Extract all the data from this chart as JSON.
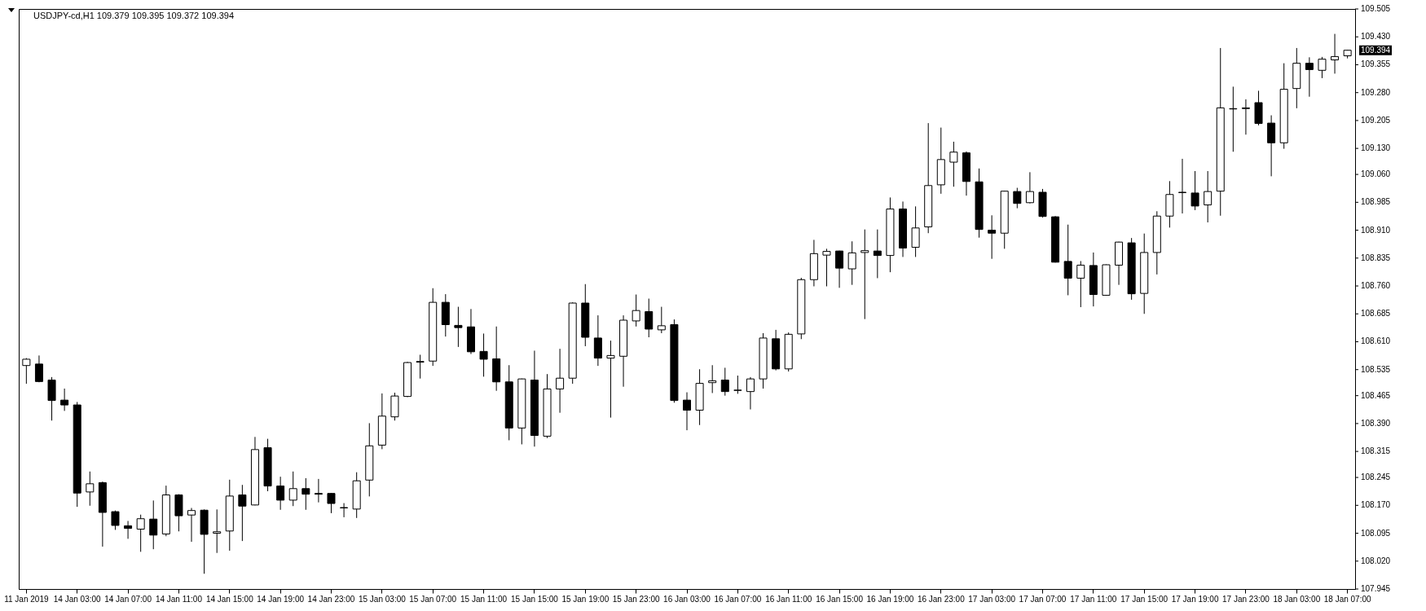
{
  "chart_data": {
    "type": "candlestick",
    "title": "USDJPY-cd,H1  109.379 109.395 109.372 109.394",
    "categories": [
      "11 Jan 2019",
      null,
      null,
      null,
      "14 Jan 03:00",
      null,
      null,
      null,
      "14 Jan 07:00",
      null,
      null,
      null,
      "14 Jan 11:00",
      null,
      null,
      null,
      "14 Jan 15:00",
      null,
      null,
      null,
      "14 Jan 19:00",
      null,
      null,
      null,
      "14 Jan 23:00",
      null,
      null,
      null,
      "15 Jan 03:00",
      null,
      null,
      null,
      "15 Jan 07:00",
      null,
      null,
      null,
      "15 Jan 11:00",
      null,
      null,
      null,
      "15 Jan 15:00",
      null,
      null,
      null,
      "15 Jan 19:00",
      null,
      null,
      null,
      "15 Jan 23:00",
      null,
      null,
      null,
      "16 Jan 03:00",
      null,
      null,
      null,
      "16 Jan 07:00",
      null,
      null,
      null,
      "16 Jan 11:00",
      null,
      null,
      null,
      "16 Jan 15:00",
      null,
      null,
      null,
      "16 Jan 19:00",
      null,
      null,
      null,
      "16 Jan 23:00",
      null,
      null,
      null,
      "17 Jan 03:00",
      null,
      null,
      null,
      "17 Jan 07:00",
      null,
      null,
      null,
      "17 Jan 11:00",
      null,
      null,
      null,
      "17 Jan 15:00",
      null,
      null,
      null,
      "17 Jan 19:00",
      null,
      null,
      null,
      "17 Jan 23:00",
      null,
      null,
      null,
      "18 Jan 03:00",
      null,
      null,
      null,
      "18 Jan 07:00"
    ],
    "ohlc": [
      [
        108.546,
        108.566,
        108.497,
        108.563
      ],
      [
        108.55,
        108.573,
        108.501,
        108.503
      ],
      [
        108.507,
        108.515,
        108.398,
        108.452
      ],
      [
        108.453,
        108.484,
        108.424,
        108.44
      ],
      [
        108.44,
        108.448,
        108.166,
        108.203
      ],
      [
        108.206,
        108.261,
        108.169,
        108.228
      ],
      [
        108.231,
        108.234,
        108.059,
        108.151
      ],
      [
        108.153,
        108.156,
        108.104,
        108.116
      ],
      [
        108.115,
        108.128,
        108.08,
        108.108
      ],
      [
        108.106,
        108.145,
        108.045,
        108.134
      ],
      [
        108.133,
        108.183,
        108.052,
        108.09
      ],
      [
        108.093,
        108.223,
        108.087,
        108.198
      ],
      [
        108.198,
        108.2,
        108.1,
        108.142
      ],
      [
        108.144,
        108.163,
        108.072,
        108.156
      ],
      [
        108.157,
        108.159,
        107.986,
        108.092
      ],
      [
        108.095,
        108.159,
        108.042,
        108.099
      ],
      [
        108.101,
        108.239,
        108.048,
        108.195
      ],
      [
        108.198,
        108.225,
        108.074,
        108.168
      ],
      [
        108.171,
        108.354,
        108.17,
        108.32
      ],
      [
        108.325,
        108.349,
        108.208,
        108.222
      ],
      [
        108.222,
        108.247,
        108.158,
        108.184
      ],
      [
        108.184,
        108.261,
        108.168,
        108.215
      ],
      [
        108.215,
        108.243,
        108.158,
        108.2
      ],
      [
        108.202,
        108.241,
        108.178,
        108.2
      ],
      [
        108.202,
        108.203,
        108.149,
        108.175
      ],
      [
        108.163,
        108.176,
        108.138,
        108.164
      ],
      [
        108.16,
        108.259,
        108.136,
        108.236
      ],
      [
        108.238,
        108.391,
        108.194,
        108.33
      ],
      [
        108.332,
        108.471,
        108.321,
        108.41
      ],
      [
        108.408,
        108.473,
        108.398,
        108.464
      ],
      [
        108.463,
        108.556,
        108.461,
        108.554
      ],
      [
        108.555,
        108.575,
        108.511,
        108.557
      ],
      [
        108.558,
        108.754,
        108.545,
        108.716
      ],
      [
        108.716,
        108.738,
        108.624,
        108.656
      ],
      [
        108.654,
        108.704,
        108.596,
        108.648
      ],
      [
        108.65,
        108.698,
        108.577,
        108.583
      ],
      [
        108.584,
        108.632,
        108.516,
        108.563
      ],
      [
        108.564,
        108.651,
        108.478,
        108.502
      ],
      [
        108.502,
        108.547,
        108.345,
        108.378
      ],
      [
        108.378,
        108.511,
        108.334,
        108.51
      ],
      [
        108.507,
        108.586,
        108.328,
        108.358
      ],
      [
        108.356,
        108.523,
        108.351,
        108.483
      ],
      [
        108.483,
        108.591,
        108.419,
        108.512
      ],
      [
        108.512,
        108.716,
        108.497,
        108.714
      ],
      [
        108.714,
        108.765,
        108.598,
        108.622
      ],
      [
        108.62,
        108.681,
        108.545,
        108.566
      ],
      [
        108.566,
        108.613,
        108.406,
        108.573
      ],
      [
        108.571,
        108.681,
        108.489,
        108.668
      ],
      [
        108.666,
        108.737,
        108.651,
        108.694
      ],
      [
        108.691,
        108.726,
        108.622,
        108.644
      ],
      [
        108.642,
        108.704,
        108.633,
        108.653
      ],
      [
        108.656,
        108.67,
        108.446,
        108.452
      ],
      [
        108.453,
        108.474,
        108.372,
        108.426
      ],
      [
        108.426,
        108.536,
        108.386,
        108.498
      ],
      [
        108.5,
        108.547,
        108.472,
        108.505
      ],
      [
        108.507,
        108.54,
        108.465,
        108.476
      ],
      [
        108.479,
        108.519,
        108.47,
        108.48
      ],
      [
        108.476,
        108.515,
        108.428,
        108.51
      ],
      [
        108.51,
        108.633,
        108.484,
        108.62
      ],
      [
        108.618,
        108.642,
        108.533,
        108.537
      ],
      [
        108.537,
        108.635,
        108.53,
        108.63
      ],
      [
        108.631,
        108.782,
        108.617,
        108.777
      ],
      [
        108.777,
        108.884,
        108.759,
        108.847
      ],
      [
        108.843,
        108.86,
        108.759,
        108.853
      ],
      [
        108.854,
        108.855,
        108.755,
        108.808
      ],
      [
        108.806,
        108.88,
        108.763,
        108.849
      ],
      [
        108.85,
        108.912,
        108.671,
        108.855
      ],
      [
        108.854,
        108.912,
        108.781,
        108.842
      ],
      [
        108.842,
        108.998,
        108.797,
        108.967
      ],
      [
        108.967,
        108.987,
        108.838,
        108.862
      ],
      [
        108.864,
        108.974,
        108.838,
        108.916
      ],
      [
        108.919,
        109.198,
        108.902,
        109.03
      ],
      [
        109.032,
        109.186,
        109.008,
        109.1
      ],
      [
        109.093,
        109.148,
        109.027,
        109.12
      ],
      [
        109.118,
        109.122,
        109.003,
        109.041
      ],
      [
        109.04,
        109.076,
        108.89,
        108.912
      ],
      [
        108.91,
        108.95,
        108.833,
        108.902
      ],
      [
        108.902,
        109.016,
        108.86,
        109.015
      ],
      [
        109.014,
        109.024,
        108.969,
        108.982
      ],
      [
        108.984,
        109.066,
        108.982,
        109.014
      ],
      [
        109.012,
        109.021,
        108.944,
        108.947
      ],
      [
        108.946,
        108.948,
        108.823,
        108.824
      ],
      [
        108.826,
        108.925,
        108.735,
        108.781
      ],
      [
        108.781,
        108.827,
        108.703,
        108.816
      ],
      [
        108.815,
        108.85,
        108.705,
        108.737
      ],
      [
        108.735,
        108.818,
        108.734,
        108.817
      ],
      [
        108.816,
        108.879,
        108.763,
        108.878
      ],
      [
        108.876,
        108.889,
        108.723,
        108.739
      ],
      [
        108.74,
        108.901,
        108.685,
        108.85
      ],
      [
        108.85,
        108.961,
        108.791,
        108.948
      ],
      [
        108.948,
        109.042,
        108.917,
        109.006
      ],
      [
        109.011,
        109.102,
        108.955,
        109.012
      ],
      [
        109.01,
        109.069,
        108.964,
        108.975
      ],
      [
        108.978,
        109.069,
        108.931,
        109.014
      ],
      [
        109.015,
        109.4,
        108.949,
        109.239
      ],
      [
        109.236,
        109.296,
        109.121,
        109.237
      ],
      [
        109.237,
        109.262,
        109.167,
        109.239
      ],
      [
        109.253,
        109.285,
        109.192,
        109.197
      ],
      [
        109.198,
        109.219,
        109.055,
        109.145
      ],
      [
        109.145,
        109.359,
        109.129,
        109.289
      ],
      [
        109.291,
        109.4,
        109.238,
        109.359
      ],
      [
        109.359,
        109.375,
        109.269,
        109.342
      ],
      [
        109.34,
        109.376,
        109.319,
        109.37
      ],
      [
        109.368,
        109.438,
        109.331,
        109.377
      ],
      [
        109.379,
        109.395,
        109.372,
        109.394
      ]
    ],
    "colors": [
      "#ffffff",
      "#000000",
      "#000000",
      "#000000",
      "#000000",
      "#ffffff",
      "#000000",
      "#000000",
      "#000000",
      "#ffffff",
      "#000000",
      "#ffffff",
      "#000000",
      "#ffffff",
      "#000000",
      "#ffffff",
      "#ffffff",
      "#000000",
      "#ffffff",
      "#000000",
      "#000000",
      "#ffffff",
      "#000000",
      "#000000",
      "#000000",
      "#ffffff",
      "#ffffff",
      "#ffffff",
      "#ffffff",
      "#ffffff",
      "#ffffff",
      "#ffffff",
      "#ffffff",
      "#000000",
      "#000000",
      "#000000",
      "#000000",
      "#000000",
      "#000000",
      "#ffffff",
      "#000000",
      "#ffffff",
      "#ffffff",
      "#ffffff",
      "#000000",
      "#000000",
      "#ffffff",
      "#ffffff",
      "#ffffff",
      "#000000",
      "#ffffff",
      "#000000",
      "#000000",
      "#ffffff",
      "#ffffff",
      "#000000",
      "#ffffff",
      "#ffffff",
      "#ffffff",
      "#000000",
      "#ffffff",
      "#ffffff",
      "#ffffff",
      "#ffffff",
      "#000000",
      "#ffffff",
      "#ffffff",
      "#000000",
      "#ffffff",
      "#000000",
      "#ffffff",
      "#ffffff",
      "#ffffff",
      "#ffffff",
      "#000000",
      "#000000",
      "#000000",
      "#ffffff",
      "#000000",
      "#ffffff",
      "#000000",
      "#000000",
      "#000000",
      "#ffffff",
      "#000000",
      "#ffffff",
      "#ffffff",
      "#000000",
      "#ffffff",
      "#ffffff",
      "#ffffff",
      "#ffffff",
      "#000000",
      "#ffffff",
      "#ffffff",
      "#ffffff",
      "#ffffff",
      "#000000",
      "#000000",
      "#ffffff",
      "#ffffff",
      "#000000",
      "#ffffff",
      "#ffffff",
      "#ffffff"
    ],
    "ylim": [
      107.945,
      109.505
    ],
    "yticks": [
      {
        "value": 107.945,
        "label": "107.945"
      },
      {
        "value": 108.02,
        "label": "108.020"
      },
      {
        "value": 108.095,
        "label": "108.095"
      },
      {
        "value": 108.17,
        "label": "108.170"
      },
      {
        "value": 108.245,
        "label": "108.245"
      },
      {
        "value": 108.315,
        "label": "108.315"
      },
      {
        "value": 108.39,
        "label": "108.390"
      },
      {
        "value": 108.465,
        "label": "108.465"
      },
      {
        "value": 108.535,
        "label": "108.535"
      },
      {
        "value": 108.61,
        "label": "108.610"
      },
      {
        "value": 108.685,
        "label": "108.685"
      },
      {
        "value": 108.76,
        "label": "108.760"
      },
      {
        "value": 108.835,
        "label": "108.835"
      },
      {
        "value": 108.91,
        "label": "108.910"
      },
      {
        "value": 108.985,
        "label": "108.985"
      },
      {
        "value": 109.06,
        "label": "109.060"
      },
      {
        "value": 109.13,
        "label": "109.130"
      },
      {
        "value": 109.205,
        "label": "109.205"
      },
      {
        "value": 109.28,
        "label": "109.280"
      },
      {
        "value": 109.355,
        "label": "109.355"
      },
      {
        "value": 109.43,
        "label": "109.430"
      },
      {
        "value": 109.505,
        "label": "109.505"
      }
    ],
    "annotations": [
      {
        "text": "109.394",
        "x": "18 Jan 07:00",
        "y": 109.394
      }
    ]
  }
}
